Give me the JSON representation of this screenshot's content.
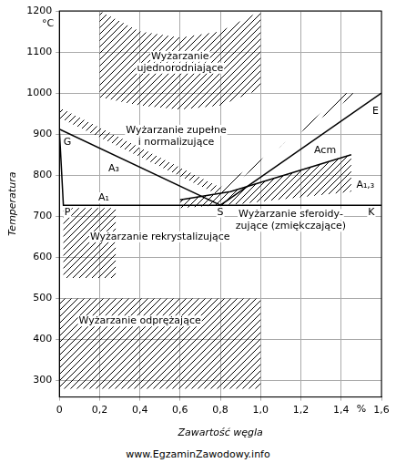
{
  "chart_data": {
    "type": "line",
    "x_label": "Zawartość węgla",
    "y_label": "Temperatura",
    "x_unit": "%",
    "y_unit": "°C",
    "xlim": [
      0,
      1.6
    ],
    "xticks": [
      0,
      {
        "value": 0.2,
        "label": "0,2"
      },
      {
        "value": 0.4,
        "label": "0,4"
      },
      {
        "value": 0.6,
        "label": "0,6"
      },
      {
        "value": 0.8,
        "label": "0,8"
      },
      {
        "value": 1.0,
        "label": "1,0"
      },
      {
        "value": 1.2,
        "label": "1,2"
      },
      {
        "value": 1.4,
        "label": "1,4"
      },
      {
        "value": 1.6,
        "label": "1,6"
      }
    ],
    "ylim": [
      260,
      1200
    ],
    "yticks": [
      300,
      400,
      500,
      600,
      700,
      800,
      900,
      1000,
      1100,
      1200
    ],
    "grid": true,
    "series": [
      {
        "color": "#000000",
        "x": [
          0,
          0.8
        ],
        "y": [
          912,
          727
        ]
      },
      {
        "color": "#000000",
        "x": [
          0,
          0.02,
          1.6
        ],
        "y": [
          912,
          727,
          727
        ]
      },
      {
        "color": "#000000",
        "x": [
          0.8,
          1.6
        ],
        "y": [
          727,
          1000
        ]
      },
      {
        "color": "#000000",
        "x": [
          0.6,
          0.85,
          1.45
        ],
        "y": [
          740,
          760,
          850
        ]
      }
    ],
    "regions": [
      {
        "color": "#000000",
        "x": [
          0.2,
          0.4,
          0.6,
          0.8,
          1.0,
          1.0,
          0.8,
          0.6,
          0.4,
          0.2
        ],
        "y": [
          1200,
          1150,
          1135,
          1150,
          1200,
          1010,
          970,
          960,
          970,
          990
        ]
      },
      {
        "color": "#000000",
        "x": [
          0,
          0.8,
          1.48,
          1.42,
          0.8,
          0
        ],
        "y": [
          965,
          770,
          1000,
          1000,
          750,
          940
        ]
      },
      {
        "color": "#000000",
        "x": [
          0.6,
          0.85,
          1.45,
          1.45,
          0.9,
          0.6
        ],
        "y": [
          740,
          760,
          850,
          760,
          730,
          720
        ]
      },
      {
        "color": "#000000",
        "x": [
          0.02,
          0.28,
          0.28,
          0.02
        ],
        "y": [
          550,
          550,
          720,
          720
        ]
      },
      {
        "color": "#000000",
        "x": [
          0,
          1.0,
          1.0,
          0
        ],
        "y": [
          280,
          280,
          500,
          500
        ]
      }
    ],
    "annotations": [
      {
        "text": [
          "Wyżarzanie",
          "ujednorodniające"
        ],
        "x": 0.6,
        "y": 1075
      },
      {
        "text": [
          "Wyżarzanie zupełne",
          "i normalizujące"
        ],
        "x": 0.58,
        "y": 895
      },
      {
        "text": [
          "Wyżarzanie sferoidy-",
          "zujące (zmiękczające)"
        ],
        "x": 1.15,
        "y": 690
      },
      {
        "text": "Wyżarzanie rekrystalizujące",
        "x": 0.5,
        "y": 650
      },
      {
        "text": "Wyżarzanie odprężające",
        "x": 0.4,
        "y": 445
      },
      {
        "text": "A₃",
        "x": 0.27,
        "y": 815
      },
      {
        "text": "A₁",
        "x": 0.22,
        "y": 745
      },
      {
        "text": "Acm",
        "x": 1.32,
        "y": 860
      },
      {
        "text": "A₁,₃",
        "x": 1.52,
        "y": 775
      },
      {
        "text": "G",
        "x": 0.04,
        "y": 880
      },
      {
        "text": "S",
        "x": 0.8,
        "y": 710
      },
      {
        "text": "E",
        "x": 1.57,
        "y": 955
      },
      {
        "text": "P",
        "x": 0.04,
        "y": 710
      },
      {
        "text": "K",
        "x": 1.55,
        "y": 710
      }
    ],
    "watermark": "www.EgzaminZawodowy.info"
  }
}
